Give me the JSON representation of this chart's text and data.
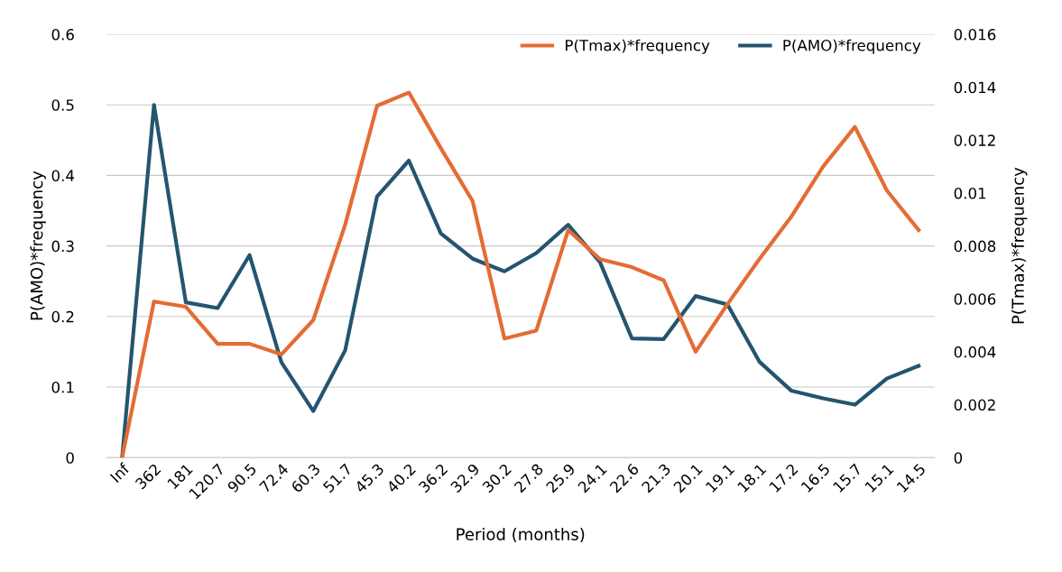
{
  "chart_data": {
    "type": "line",
    "categories": [
      "Inf",
      "362",
      "181",
      "120.7",
      "90.5",
      "72.4",
      "60.3",
      "51.7",
      "45.3",
      "40.2",
      "36.2",
      "32.9",
      "30.2",
      "27.8",
      "25.9",
      "24.1",
      "22.6",
      "21.3",
      "20.1",
      "19.1",
      "18.1",
      "17.2",
      "16.5",
      "15.7",
      "15.1",
      "14.5"
    ],
    "series": [
      {
        "name": "P(Tmax)*frequency",
        "color": "#e46c34",
        "axis": "y2",
        "values": [
          0,
          0.0059,
          0.0057,
          0.0043,
          0.0043,
          0.0039,
          0.0052,
          0.0088,
          0.0133,
          0.0138,
          0.0117,
          0.0097,
          0.0045,
          0.0048,
          0.0086,
          0.0075,
          0.0072,
          0.0067,
          0.004,
          0.0058,
          0.0075,
          0.0091,
          0.011,
          0.0125,
          0.0101,
          0.0086
        ]
      },
      {
        "name": "P(AMO)*frequency",
        "color": "#245570",
        "values": [
          0,
          0.5,
          0.22,
          0.212,
          0.287,
          0.135,
          0.066,
          0.152,
          0.37,
          0.421,
          0.318,
          0.282,
          0.264,
          0.29,
          0.33,
          0.277,
          0.169,
          0.168,
          0.229,
          0.217,
          0.136,
          0.095,
          0.084,
          0.075,
          0.112,
          0.13
        ]
      }
    ],
    "xlabel": "Period (months)",
    "ylabel": "P(AMO)*frequency",
    "y2label": "P(Tmax)*frequency",
    "ylim": [
      0,
      0.6
    ],
    "yticks": [
      0,
      0.1,
      0.2,
      0.3,
      0.4,
      0.5,
      0.6
    ],
    "y2lim": [
      0,
      0.016
    ],
    "y2ticks": [
      0,
      0.002,
      0.004,
      0.006,
      0.008,
      0.01,
      0.012,
      0.014,
      0.016
    ],
    "grid": "y",
    "legend": "top right",
    "marker": "none",
    "line_style": "solid"
  }
}
